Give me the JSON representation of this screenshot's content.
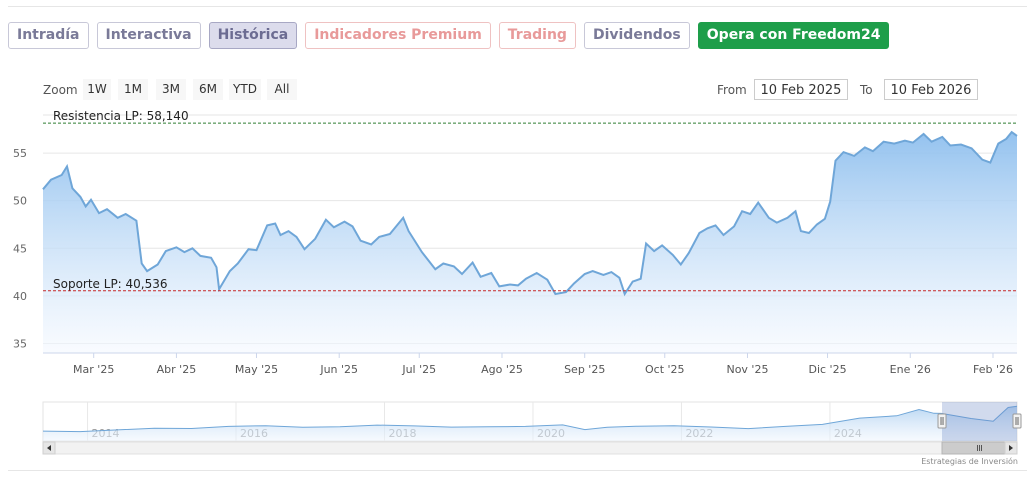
{
  "tabs": [
    {
      "label": "Intradía",
      "state": "normal"
    },
    {
      "label": "Interactiva",
      "state": "normal"
    },
    {
      "label": "Histórica",
      "state": "active"
    },
    {
      "label": "Indicadores Premium",
      "state": "premium"
    },
    {
      "label": "Trading",
      "state": "premium"
    },
    {
      "label": "Dividendos",
      "state": "normal"
    },
    {
      "label": "Opera con Freedom24",
      "state": "cta"
    }
  ],
  "zoom": {
    "label": "Zoom",
    "buttons": [
      "1W",
      "1M",
      "3M",
      "6M",
      "YTD",
      "All"
    ]
  },
  "range": {
    "from_label": "From",
    "from_value": "10 Feb 2025",
    "to_label": "To",
    "to_value": "10 Feb 2026"
  },
  "credit": "Estrategias de Inversión",
  "colors": {
    "line": "#6fa6d8",
    "fill_top": "#8ebfee",
    "fill_bottom": "#f5f9ff",
    "resistance": "#2e7d32",
    "support": "#c62828",
    "cta": "#1e9e4a"
  },
  "chart_data": {
    "type": "area",
    "x_start": "2025-02-10",
    "x_end": "2026-02-10",
    "ylim": [
      34,
      59
    ],
    "y_ticks": [
      35,
      40,
      45,
      50,
      55
    ],
    "x_ticks": [
      {
        "date": "2025-03-01",
        "label": "Mar '25"
      },
      {
        "date": "2025-04-01",
        "label": "Abr '25"
      },
      {
        "date": "2025-05-01",
        "label": "May '25"
      },
      {
        "date": "2025-06-01",
        "label": "Jun '25"
      },
      {
        "date": "2025-07-01",
        "label": "Jul '25"
      },
      {
        "date": "2025-08-01",
        "label": "Ago '25"
      },
      {
        "date": "2025-09-01",
        "label": "Sep '25"
      },
      {
        "date": "2025-10-01",
        "label": "Oct '25"
      },
      {
        "date": "2025-11-01",
        "label": "Nov '25"
      },
      {
        "date": "2025-12-01",
        "label": "Dic '25"
      },
      {
        "date": "2026-01-01",
        "label": "Ene '26"
      },
      {
        "date": "2026-02-01",
        "label": "Feb '26"
      }
    ],
    "annotations": [
      {
        "label": "Resistencia LP: 58,140",
        "value": 58.14,
        "kind": "resistance"
      },
      {
        "label": "Soporte LP: 40,536",
        "value": 40.536,
        "kind": "support"
      }
    ],
    "points": [
      [
        "2025-02-10",
        51.2
      ],
      [
        "2025-02-13",
        52.2
      ],
      [
        "2025-02-17",
        52.7
      ],
      [
        "2025-02-19",
        53.6
      ],
      [
        "2025-02-21",
        51.3
      ],
      [
        "2025-02-24",
        50.4
      ],
      [
        "2025-02-26",
        49.4
      ],
      [
        "2025-02-28",
        50.1
      ],
      [
        "2025-03-03",
        48.7
      ],
      [
        "2025-03-06",
        49.1
      ],
      [
        "2025-03-10",
        48.2
      ],
      [
        "2025-03-13",
        48.6
      ],
      [
        "2025-03-17",
        47.9
      ],
      [
        "2025-03-19",
        43.4
      ],
      [
        "2025-03-21",
        42.6
      ],
      [
        "2025-03-25",
        43.3
      ],
      [
        "2025-03-28",
        44.7
      ],
      [
        "2025-04-01",
        45.1
      ],
      [
        "2025-04-04",
        44.6
      ],
      [
        "2025-04-07",
        45.0
      ],
      [
        "2025-04-10",
        44.2
      ],
      [
        "2025-04-14",
        44.0
      ],
      [
        "2025-04-16",
        43.0
      ],
      [
        "2025-04-17",
        40.7
      ],
      [
        "2025-04-21",
        42.6
      ],
      [
        "2025-04-24",
        43.4
      ],
      [
        "2025-04-28",
        44.9
      ],
      [
        "2025-05-01",
        44.8
      ],
      [
        "2025-05-05",
        47.4
      ],
      [
        "2025-05-08",
        47.6
      ],
      [
        "2025-05-10",
        46.4
      ],
      [
        "2025-05-13",
        46.8
      ],
      [
        "2025-05-16",
        46.2
      ],
      [
        "2025-05-19",
        44.9
      ],
      [
        "2025-05-23",
        46.0
      ],
      [
        "2025-05-27",
        48.0
      ],
      [
        "2025-05-30",
        47.2
      ],
      [
        "2025-06-03",
        47.8
      ],
      [
        "2025-06-06",
        47.3
      ],
      [
        "2025-06-09",
        45.8
      ],
      [
        "2025-06-13",
        45.4
      ],
      [
        "2025-06-16",
        46.2
      ],
      [
        "2025-06-20",
        46.5
      ],
      [
        "2025-06-25",
        48.2
      ],
      [
        "2025-06-27",
        46.8
      ],
      [
        "2025-07-02",
        44.6
      ],
      [
        "2025-07-07",
        42.8
      ],
      [
        "2025-07-10",
        43.4
      ],
      [
        "2025-07-14",
        43.1
      ],
      [
        "2025-07-17",
        42.3
      ],
      [
        "2025-07-21",
        43.5
      ],
      [
        "2025-07-24",
        42.0
      ],
      [
        "2025-07-28",
        42.4
      ],
      [
        "2025-07-31",
        41.0
      ],
      [
        "2025-08-04",
        41.2
      ],
      [
        "2025-08-07",
        41.1
      ],
      [
        "2025-08-10",
        41.8
      ],
      [
        "2025-08-14",
        42.4
      ],
      [
        "2025-08-18",
        41.7
      ],
      [
        "2025-08-21",
        40.2
      ],
      [
        "2025-08-25",
        40.4
      ],
      [
        "2025-08-28",
        41.3
      ],
      [
        "2025-09-01",
        42.3
      ],
      [
        "2025-09-04",
        42.6
      ],
      [
        "2025-09-08",
        42.2
      ],
      [
        "2025-09-11",
        42.5
      ],
      [
        "2025-09-14",
        41.9
      ],
      [
        "2025-09-16",
        40.2
      ],
      [
        "2025-09-19",
        41.5
      ],
      [
        "2025-09-22",
        41.8
      ],
      [
        "2025-09-24",
        45.5
      ],
      [
        "2025-09-27",
        44.7
      ],
      [
        "2025-09-30",
        45.3
      ],
      [
        "2025-10-04",
        44.3
      ],
      [
        "2025-10-07",
        43.3
      ],
      [
        "2025-10-10",
        44.5
      ],
      [
        "2025-10-14",
        46.6
      ],
      [
        "2025-10-17",
        47.1
      ],
      [
        "2025-10-20",
        47.4
      ],
      [
        "2025-10-23",
        46.4
      ],
      [
        "2025-10-27",
        47.3
      ],
      [
        "2025-10-30",
        48.9
      ],
      [
        "2025-11-02",
        48.6
      ],
      [
        "2025-11-05",
        49.8
      ],
      [
        "2025-11-09",
        48.2
      ],
      [
        "2025-11-12",
        47.7
      ],
      [
        "2025-11-16",
        48.2
      ],
      [
        "2025-11-19",
        48.9
      ],
      [
        "2025-11-21",
        46.8
      ],
      [
        "2025-11-24",
        46.6
      ],
      [
        "2025-11-27",
        47.5
      ],
      [
        "2025-11-30",
        48.1
      ],
      [
        "2025-12-02",
        49.9
      ],
      [
        "2025-12-04",
        54.2
      ],
      [
        "2025-12-07",
        55.1
      ],
      [
        "2025-12-11",
        54.7
      ],
      [
        "2025-12-15",
        55.6
      ],
      [
        "2025-12-18",
        55.2
      ],
      [
        "2025-12-22",
        56.2
      ],
      [
        "2025-12-26",
        56.0
      ],
      [
        "2025-12-30",
        56.3
      ],
      [
        "2026-01-02",
        56.1
      ],
      [
        "2026-01-06",
        57.0
      ],
      [
        "2026-01-09",
        56.2
      ],
      [
        "2026-01-13",
        56.7
      ],
      [
        "2026-01-16",
        55.8
      ],
      [
        "2026-01-20",
        55.9
      ],
      [
        "2026-01-24",
        55.5
      ],
      [
        "2026-01-28",
        54.3
      ],
      [
        "2026-01-31",
        54.0
      ],
      [
        "2026-02-03",
        56.0
      ],
      [
        "2026-02-06",
        56.5
      ],
      [
        "2026-02-08",
        57.2
      ],
      [
        "2026-02-10",
        56.8
      ]
    ]
  },
  "navigator": {
    "labels": [
      "2014",
      "2016",
      "2018",
      "2020",
      "2022",
      "2024"
    ],
    "history": [
      [
        2013.0,
        37.6
      ],
      [
        2013.5,
        37.2
      ],
      [
        2014.0,
        38.5
      ],
      [
        2014.5,
        39.8
      ],
      [
        2015.0,
        39.6
      ],
      [
        2015.5,
        41.2
      ],
      [
        2016.0,
        41.8
      ],
      [
        2016.5,
        40.6
      ],
      [
        2017.0,
        41.0
      ],
      [
        2017.5,
        42.2
      ],
      [
        2018.0,
        41.6
      ],
      [
        2018.5,
        40.7
      ],
      [
        2019.0,
        40.9
      ],
      [
        2019.5,
        41.2
      ],
      [
        2020.0,
        42.4
      ],
      [
        2020.3,
        38.8
      ],
      [
        2020.6,
        40.6
      ],
      [
        2021.0,
        41.4
      ],
      [
        2021.5,
        41.8
      ],
      [
        2022.0,
        40.8
      ],
      [
        2022.5,
        39.5
      ],
      [
        2023.0,
        41.2
      ],
      [
        2023.5,
        42.8
      ],
      [
        2024.0,
        47.6
      ],
      [
        2024.5,
        49.4
      ],
      [
        2024.8,
        54.2
      ],
      [
        2025.0,
        51.3
      ],
      [
        2025.1,
        51.2
      ],
      [
        2025.5,
        47.3
      ],
      [
        2025.8,
        45.2
      ],
      [
        2026.0,
        55.8
      ],
      [
        2026.12,
        56.8
      ]
    ]
  }
}
